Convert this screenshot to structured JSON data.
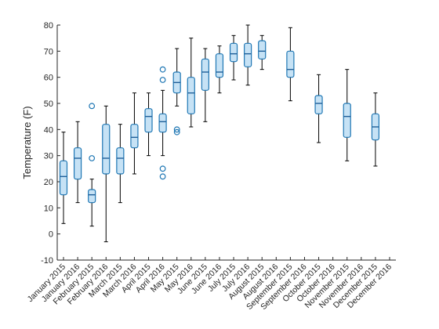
{
  "chart_data": {
    "type": "boxplot",
    "title": "",
    "xlabel": "",
    "ylabel": "Temperature (F)",
    "ylim": [
      -10,
      80
    ],
    "yticks": [
      -10,
      0,
      10,
      20,
      30,
      40,
      50,
      60,
      70,
      80
    ],
    "grid": false,
    "colors": {
      "box_fill": "#c6e2f5",
      "box_edge": "#1f77b4",
      "median": "#1f5f99",
      "whisker": "#000000",
      "outlier": "#1f77b4"
    },
    "categories": [
      "January 2015",
      "January 2016",
      "February 2015",
      "February 2016",
      "March 2015",
      "March 2016",
      "April 2015",
      "April 2016",
      "May 2015",
      "May 2016",
      "June 2015",
      "June 2016",
      "July 2015",
      "July 2016",
      "August 2015",
      "August 2016",
      "September 2015",
      "September 2016",
      "October 2015",
      "October 2016",
      "November 2015",
      "November 2016",
      "December 2015",
      "December 2016"
    ],
    "boxes": [
      {
        "category": "January 2015",
        "min": 4,
        "q1": 15,
        "median": 22,
        "q3": 28,
        "max": 39,
        "outliers": []
      },
      {
        "category": "January 2016",
        "min": 12,
        "q1": 21,
        "median": 29,
        "q3": 33,
        "max": 43,
        "outliers": []
      },
      {
        "category": "February 2015",
        "min": 3,
        "q1": 12,
        "median": 15,
        "q3": 17,
        "max": 21,
        "outliers": [
          29,
          49
        ]
      },
      {
        "category": "February 2016",
        "min": -3,
        "q1": 23,
        "median": 29,
        "q3": 42,
        "max": 49,
        "outliers": []
      },
      {
        "category": "March 2015",
        "min": 12,
        "q1": 23,
        "median": 29,
        "q3": 33,
        "max": 42,
        "outliers": []
      },
      {
        "category": "March 2016",
        "min": 23,
        "q1": 33,
        "median": 37,
        "q3": 42,
        "max": 54,
        "outliers": []
      },
      {
        "category": "April 2015",
        "min": 30,
        "q1": 39,
        "median": 45,
        "q3": 48,
        "max": 54,
        "outliers": []
      },
      {
        "category": "April 2016",
        "min": 30,
        "q1": 39,
        "median": 43,
        "q3": 46,
        "max": 55,
        "outliers": [
          22,
          25,
          59,
          63
        ]
      },
      {
        "category": "May 2015",
        "min": 49,
        "q1": 54,
        "median": 58,
        "q3": 62,
        "max": 71,
        "outliers": [
          39,
          40
        ]
      },
      {
        "category": "May 2016",
        "min": 41,
        "q1": 46,
        "median": 54,
        "q3": 60,
        "max": 75,
        "outliers": []
      },
      {
        "category": "June 2015",
        "min": 43,
        "q1": 55,
        "median": 62,
        "q3": 67,
        "max": 71,
        "outliers": []
      },
      {
        "category": "June 2016",
        "min": 54,
        "q1": 60,
        "median": 62,
        "q3": 69,
        "max": 72,
        "outliers": []
      },
      {
        "category": "July 2015",
        "min": 59,
        "q1": 66,
        "median": 69,
        "q3": 73,
        "max": 76,
        "outliers": []
      },
      {
        "category": "July 2016",
        "min": 57,
        "q1": 64,
        "median": 69,
        "q3": 73,
        "max": 80,
        "outliers": []
      },
      {
        "category": "August 2015",
        "min": 63,
        "q1": 67,
        "median": 70,
        "q3": 74,
        "max": 76,
        "outliers": []
      },
      {
        "category": "September 2015",
        "min": 51,
        "q1": 60,
        "median": 63,
        "q3": 70,
        "max": 79,
        "outliers": []
      },
      {
        "category": "October 2015",
        "min": 35,
        "q1": 46,
        "median": 50,
        "q3": 53,
        "max": 61,
        "outliers": []
      },
      {
        "category": "November 2015",
        "min": 28,
        "q1": 37,
        "median": 45,
        "q3": 50,
        "max": 63,
        "outliers": []
      },
      {
        "category": "December 2015",
        "min": 26,
        "q1": 36,
        "median": 41,
        "q3": 46,
        "max": 54,
        "outliers": []
      }
    ]
  }
}
